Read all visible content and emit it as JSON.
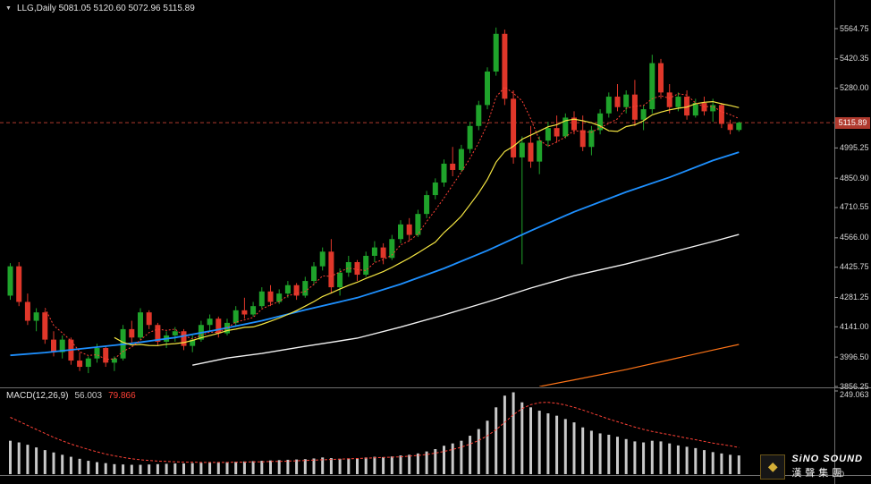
{
  "header": {
    "collapse_arrow": "▼",
    "symbol_text": "LLG,Daily  5081.05 5120.60 5072.96 5115.89"
  },
  "price_axis": {
    "ticks": [
      "5564.75",
      "5420.35",
      "5280.00",
      "4995.25",
      "4850.90",
      "4710.55",
      "4566.00",
      "4425.75",
      "4281.25",
      "4141.00",
      "3996.50",
      "3856.25"
    ],
    "current_price": "5115.89"
  },
  "macd_panel": {
    "label": "MACD(12,26,9)",
    "main_value": "56.003",
    "signal_value": "79.866",
    "levels": [
      "249.063",
      "0"
    ]
  },
  "logo": {
    "icon": "◆",
    "line1": "SiNO SOUND",
    "line2": "漢聲集團"
  },
  "colors": {
    "up": "#1FA32B",
    "down": "#E0372A",
    "ma_yellow": "#F5E642",
    "ma_red": "#FF4136",
    "ma_blue": "#1E90FF",
    "ma_white": "#F2F2F2",
    "ma_orange": "#FF7518",
    "hist": "#C9C9C9",
    "signal": "#FF4136",
    "axis_text": "#D8D8D8",
    "price_tag_bg": "#B03A2E",
    "separator": "#6F6F6F"
  },
  "chart_data": {
    "type": "candlestick",
    "title": "LLG,Daily",
    "ohlc_header": {
      "open": "5081.05",
      "high": "5120.60",
      "low": "5072.96",
      "close": "5115.89"
    },
    "ylim": [
      3856.25,
      5564.75
    ],
    "ohlc": [
      [
        4290,
        4445,
        4270,
        4430
      ],
      [
        4430,
        4450,
        4240,
        4260
      ],
      [
        4260,
        4300,
        4150,
        4170
      ],
      [
        4170,
        4230,
        4120,
        4210
      ],
      [
        4210,
        4220,
        4060,
        4080
      ],
      [
        4080,
        4120,
        4000,
        4020
      ],
      [
        4020,
        4100,
        3990,
        4080
      ],
      [
        4080,
        4090,
        3960,
        3980
      ],
      [
        3980,
        4020,
        3930,
        3950
      ],
      [
        3950,
        4000,
        3920,
        3990
      ],
      [
        3990,
        4060,
        3970,
        4040
      ],
      [
        4040,
        4050,
        3950,
        3970
      ],
      [
        3970,
        4000,
        3930,
        3990
      ],
      [
        3990,
        4150,
        3980,
        4130
      ],
      [
        4130,
        4170,
        4060,
        4090
      ],
      [
        4090,
        4230,
        4080,
        4210
      ],
      [
        4210,
        4220,
        4130,
        4150
      ],
      [
        4150,
        4160,
        4050,
        4070
      ],
      [
        4070,
        4120,
        4040,
        4100
      ],
      [
        4100,
        4140,
        4070,
        4120
      ],
      [
        4120,
        4130,
        4030,
        4050
      ],
      [
        4050,
        4100,
        4020,
        4080
      ],
      [
        4080,
        4170,
        4070,
        4150
      ],
      [
        4150,
        4200,
        4120,
        4180
      ],
      [
        4180,
        4190,
        4090,
        4110
      ],
      [
        4110,
        4180,
        4100,
        4160
      ],
      [
        4160,
        4240,
        4140,
        4220
      ],
      [
        4220,
        4280,
        4180,
        4200
      ],
      [
        4200,
        4260,
        4190,
        4240
      ],
      [
        4240,
        4330,
        4230,
        4310
      ],
      [
        4310,
        4340,
        4240,
        4260
      ],
      [
        4260,
        4320,
        4250,
        4300
      ],
      [
        4300,
        4360,
        4280,
        4340
      ],
      [
        4340,
        4350,
        4270,
        4290
      ],
      [
        4290,
        4380,
        4280,
        4360
      ],
      [
        4360,
        4450,
        4340,
        4430
      ],
      [
        4430,
        4520,
        4410,
        4500
      ],
      [
        4500,
        4560,
        4300,
        4330
      ],
      [
        4330,
        4420,
        4290,
        4400
      ],
      [
        4400,
        4480,
        4380,
        4450
      ],
      [
        4450,
        4460,
        4360,
        4390
      ],
      [
        4390,
        4500,
        4380,
        4480
      ],
      [
        4480,
        4550,
        4450,
        4520
      ],
      [
        4520,
        4540,
        4440,
        4470
      ],
      [
        4470,
        4580,
        4460,
        4560
      ],
      [
        4560,
        4650,
        4540,
        4630
      ],
      [
        4630,
        4660,
        4550,
        4580
      ],
      [
        4580,
        4700,
        4570,
        4680
      ],
      [
        4680,
        4790,
        4660,
        4770
      ],
      [
        4770,
        4850,
        4750,
        4830
      ],
      [
        4830,
        4940,
        4810,
        4920
      ],
      [
        4920,
        5000,
        4860,
        4890
      ],
      [
        4890,
        5010,
        4880,
        4990
      ],
      [
        4990,
        5120,
        4970,
        5100
      ],
      [
        5100,
        5220,
        5080,
        5200
      ],
      [
        5200,
        5380,
        5180,
        5360
      ],
      [
        5360,
        5570,
        5340,
        5540
      ],
      [
        5540,
        5560,
        5200,
        5230
      ],
      [
        5230,
        5270,
        4920,
        4950
      ],
      [
        4950,
        5050,
        4440,
        5020
      ],
      [
        5020,
        5100,
        4900,
        4930
      ],
      [
        4930,
        5050,
        4870,
        5030
      ],
      [
        5030,
        5120,
        5000,
        5090
      ],
      [
        5090,
        5150,
        5020,
        5050
      ],
      [
        5050,
        5160,
        5040,
        5140
      ],
      [
        5140,
        5170,
        5060,
        5080
      ],
      [
        5080,
        5150,
        4980,
        5000
      ],
      [
        5000,
        5100,
        4960,
        5080
      ],
      [
        5080,
        5180,
        5060,
        5160
      ],
      [
        5160,
        5260,
        5140,
        5240
      ],
      [
        5240,
        5300,
        5170,
        5190
      ],
      [
        5190,
        5270,
        5160,
        5250
      ],
      [
        5250,
        5320,
        5100,
        5130
      ],
      [
        5130,
        5200,
        5080,
        5180
      ],
      [
        5180,
        5440,
        5160,
        5400
      ],
      [
        5400,
        5420,
        5230,
        5260
      ],
      [
        5260,
        5300,
        5160,
        5190
      ],
      [
        5190,
        5260,
        5170,
        5240
      ],
      [
        5240,
        5270,
        5130,
        5150
      ],
      [
        5150,
        5230,
        5140,
        5210
      ],
      [
        5210,
        5240,
        5150,
        5170
      ],
      [
        5170,
        5230,
        5120,
        5200
      ],
      [
        5200,
        5210,
        5090,
        5110
      ],
      [
        5110,
        5130,
        5060,
        5081
      ],
      [
        5081.05,
        5120.6,
        5072.96,
        5115.89
      ]
    ],
    "overlays": {
      "ma_fast_red_period": 5,
      "ma_yellow_period": 13,
      "ma_blue_anchors": [
        [
          1,
          4005
        ],
        [
          5,
          4018
        ],
        [
          10,
          4040
        ],
        [
          15,
          4062
        ],
        [
          20,
          4090
        ],
        [
          25,
          4128
        ],
        [
          30,
          4170
        ],
        [
          35,
          4222
        ],
        [
          41,
          4280
        ],
        [
          46,
          4345
        ],
        [
          51,
          4420
        ],
        [
          56,
          4505
        ],
        [
          61,
          4600
        ],
        [
          66,
          4690
        ],
        [
          72,
          4785
        ],
        [
          77,
          4855
        ],
        [
          82,
          4935
        ],
        [
          85,
          4975
        ]
      ],
      "ma_white_anchors": [
        [
          22,
          3958
        ],
        [
          26,
          3992
        ],
        [
          30,
          4014
        ],
        [
          35,
          4048
        ],
        [
          41,
          4087
        ],
        [
          46,
          4140
        ],
        [
          51,
          4198
        ],
        [
          56,
          4260
        ],
        [
          61,
          4326
        ],
        [
          66,
          4385
        ],
        [
          72,
          4441
        ],
        [
          77,
          4495
        ],
        [
          82,
          4548
        ],
        [
          85,
          4582
        ]
      ],
      "ma_orange_anchors": [
        [
          62,
          3856
        ],
        [
          66,
          3888
        ],
        [
          72,
          3937
        ],
        [
          78,
          3993
        ],
        [
          82,
          4030
        ],
        [
          85,
          4057
        ]
      ]
    },
    "macd": {
      "params": "12,26,9",
      "ymax": 249.063,
      "histogram": [
        100,
        95,
        88,
        80,
        72,
        65,
        58,
        52,
        46,
        40,
        36,
        33,
        30,
        29,
        28,
        28,
        29,
        30,
        31,
        32,
        32,
        33,
        34,
        35,
        36,
        36,
        37,
        38,
        39,
        40,
        41,
        42,
        43,
        44,
        45,
        47,
        50,
        48,
        46,
        47,
        48,
        50,
        52,
        51,
        53,
        56,
        58,
        62,
        68,
        75,
        85,
        92,
        100,
        115,
        135,
        160,
        200,
        235,
        245,
        215,
        200,
        190,
        182,
        175,
        165,
        155,
        140,
        130,
        122,
        118,
        112,
        105,
        98,
        95,
        100,
        98,
        92,
        86,
        82,
        78,
        72,
        66,
        62,
        58,
        56.003
      ],
      "signal": [
        170,
        158,
        146,
        134,
        122,
        110,
        100,
        90,
        82,
        74,
        67,
        60,
        55,
        50,
        46,
        43,
        41,
        39,
        38,
        37,
        36,
        36,
        35,
        35,
        35,
        35,
        36,
        36,
        37,
        37,
        38,
        38,
        39,
        40,
        41,
        42,
        43,
        44,
        45,
        46,
        47,
        48,
        49,
        50,
        51,
        52,
        54,
        56,
        59,
        63,
        68,
        74,
        81,
        90,
        101,
        115,
        133,
        155,
        178,
        196,
        208,
        214,
        215,
        212,
        207,
        200,
        192,
        183,
        174,
        165,
        157,
        149,
        141,
        134,
        128,
        123,
        118,
        113,
        108,
        103,
        98,
        93,
        89,
        85,
        79.866
      ]
    }
  }
}
